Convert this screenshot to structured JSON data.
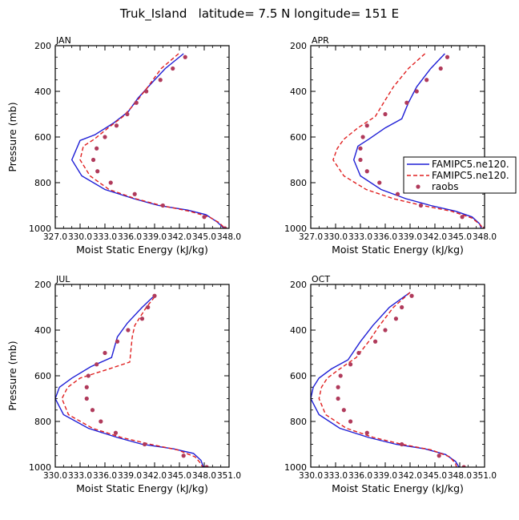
{
  "figure": {
    "title": "Truk_Island   latitude= 7.5 N longitude= 151 E"
  },
  "legend": {
    "entries": [
      {
        "name": "FAMIPC5.ne120.",
        "style": "solid",
        "color": "#1f1fd6"
      },
      {
        "name": "FAMIPC5.ne120.",
        "style": "dashed",
        "color": "#e02020"
      },
      {
        "name": "raobs",
        "style": "dots",
        "color": "#b03a5b"
      }
    ]
  },
  "chart_data": [
    {
      "type": "line",
      "panel": "JAN",
      "title": "JAN",
      "xlabel": "Moist Static Energy (kJ/kg)",
      "ylabel": "Pressure (mb)",
      "xlim": [
        327.0,
        348.0
      ],
      "ylim": [
        1000,
        200
      ],
      "xticks": [
        327.0,
        330.0,
        333.0,
        336.0,
        339.0,
        342.0,
        345.0,
        348.0
      ],
      "xticklabels": [
        "327.0",
        "330.0",
        "333.0",
        "336.0",
        "339.0",
        "342.0",
        "345.0",
        "348.0"
      ],
      "yticks": [
        200,
        400,
        600,
        800,
        1000
      ],
      "yticklabels": [
        "200",
        "400",
        "600",
        "800",
        "1000"
      ],
      "series": [
        {
          "name": "FAMIPC5.ne120.",
          "style": "solid",
          "color": "#1f1fd6",
          "points": [
            [
              342.5,
              235
            ],
            [
              340.3,
              300
            ],
            [
              338.5,
              370
            ],
            [
              337.0,
              430
            ],
            [
              335.8,
              490
            ],
            [
              334.0,
              540
            ],
            [
              331.8,
              590
            ],
            [
              330.0,
              615
            ],
            [
              329.0,
              700
            ],
            [
              330.2,
              770
            ],
            [
              333.0,
              830
            ],
            [
              336.5,
              870
            ],
            [
              339.5,
              900
            ],
            [
              343.0,
              920
            ],
            [
              345.2,
              940
            ],
            [
              346.5,
              970
            ],
            [
              347.4,
              1000
            ]
          ]
        },
        {
          "name": "FAMIPC5.ne120.",
          "style": "dashed",
          "color": "#e02020",
          "points": [
            [
              341.9,
              235
            ],
            [
              339.8,
              300
            ],
            [
              338.2,
              380
            ],
            [
              336.7,
              450
            ],
            [
              335.2,
              510
            ],
            [
              333.4,
              560
            ],
            [
              331.7,
              610
            ],
            [
              330.4,
              640
            ],
            [
              330.0,
              700
            ],
            [
              331.2,
              770
            ],
            [
              333.5,
              830
            ],
            [
              336.7,
              870
            ],
            [
              339.8,
              900
            ],
            [
              343.2,
              925
            ],
            [
              345.6,
              950
            ],
            [
              346.8,
              975
            ],
            [
              347.5,
              1000
            ]
          ]
        },
        {
          "name": "raobs",
          "style": "dots",
          "color": "#b03a5b",
          "points": [
            [
              342.7,
              250
            ],
            [
              341.2,
              300
            ],
            [
              339.7,
              350
            ],
            [
              338.0,
              400
            ],
            [
              336.8,
              450
            ],
            [
              335.7,
              500
            ],
            [
              334.4,
              550
            ],
            [
              333.0,
              600
            ],
            [
              332.0,
              650
            ],
            [
              331.6,
              700
            ],
            [
              332.1,
              750
            ],
            [
              333.7,
              800
            ],
            [
              336.6,
              850
            ],
            [
              340.0,
              900
            ],
            [
              345.0,
              950
            ],
            [
              347.5,
              1000
            ]
          ]
        }
      ]
    },
    {
      "type": "line",
      "panel": "APR",
      "title": "APR",
      "xlabel": "Moist Static Energy (kJ/kg)",
      "ylabel": "",
      "xlim": [
        327.0,
        348.0
      ],
      "ylim": [
        1000,
        200
      ],
      "xticks": [
        327.0,
        330.0,
        333.0,
        336.0,
        339.0,
        342.0,
        345.0,
        348.0
      ],
      "xticklabels": [
        "327.0",
        "330.0",
        "333.0",
        "336.0",
        "339.0",
        "342.0",
        "345.0",
        "348.0"
      ],
      "yticks": [
        200,
        400,
        600,
        800,
        1000
      ],
      "yticklabels": [
        "200",
        "400",
        "600",
        "800",
        "1000"
      ],
      "series": [
        {
          "name": "FAMIPC5.ne120.",
          "style": "solid",
          "color": "#1f1fd6",
          "points": [
            [
              343.2,
              235
            ],
            [
              341.5,
              300
            ],
            [
              339.8,
              380
            ],
            [
              338.8,
              450
            ],
            [
              338.0,
              520
            ],
            [
              336.0,
              560
            ],
            [
              334.0,
              610
            ],
            [
              332.7,
              640
            ],
            [
              332.2,
              700
            ],
            [
              333.0,
              770
            ],
            [
              335.5,
              830
            ],
            [
              338.5,
              870
            ],
            [
              341.5,
              900
            ],
            [
              344.5,
              925
            ],
            [
              346.5,
              950
            ],
            [
              347.4,
              980
            ],
            [
              347.6,
              1000
            ]
          ]
        },
        {
          "name": "FAMIPC5.ne120.",
          "style": "dashed",
          "color": "#e02020",
          "points": [
            [
              340.8,
              235
            ],
            [
              338.8,
              300
            ],
            [
              337.0,
              380
            ],
            [
              335.8,
              450
            ],
            [
              334.8,
              510
            ],
            [
              332.7,
              560
            ],
            [
              331.0,
              610
            ],
            [
              330.2,
              650
            ],
            [
              329.7,
              700
            ],
            [
              331.0,
              770
            ],
            [
              333.7,
              830
            ],
            [
              337.0,
              870
            ],
            [
              340.5,
              900
            ],
            [
              344.0,
              925
            ],
            [
              346.5,
              955
            ],
            [
              347.5,
              985
            ],
            [
              347.8,
              1000
            ]
          ]
        },
        {
          "name": "raobs",
          "style": "dots",
          "color": "#b03a5b",
          "points": [
            [
              343.5,
              250
            ],
            [
              342.7,
              300
            ],
            [
              341.0,
              350
            ],
            [
              339.8,
              400
            ],
            [
              338.6,
              450
            ],
            [
              336.0,
              500
            ],
            [
              333.8,
              550
            ],
            [
              333.3,
              600
            ],
            [
              333.0,
              650
            ],
            [
              333.0,
              700
            ],
            [
              333.8,
              750
            ],
            [
              335.3,
              800
            ],
            [
              337.5,
              850
            ],
            [
              340.3,
              900
            ],
            [
              345.3,
              950
            ],
            [
              348.0,
              1000
            ]
          ]
        }
      ]
    },
    {
      "type": "line",
      "panel": "JUL",
      "title": "JUL",
      "xlabel": "Moist Static Energy (kJ/kg)",
      "ylabel": "Pressure (mb)",
      "xlim": [
        330.0,
        351.0
      ],
      "ylim": [
        1000,
        200
      ],
      "xticks": [
        330.0,
        333.0,
        336.0,
        339.0,
        342.0,
        345.0,
        348.0,
        351.0
      ],
      "xticklabels": [
        "330.0",
        "333.0",
        "336.0",
        "339.0",
        "342.0",
        "345.0",
        "348.0",
        "351.0"
      ],
      "yticks": [
        200,
        400,
        600,
        800,
        1000
      ],
      "yticklabels": [
        "200",
        "400",
        "600",
        "800",
        "1000"
      ],
      "series": [
        {
          "name": "FAMIPC5.ne120.",
          "style": "solid",
          "color": "#1f1fd6",
          "points": [
            [
              341.8,
              255
            ],
            [
              340.5,
              300
            ],
            [
              338.7,
              370
            ],
            [
              337.5,
              430
            ],
            [
              336.8,
              520
            ],
            [
              334.3,
              560
            ],
            [
              332.0,
              610
            ],
            [
              330.5,
              650
            ],
            [
              330.0,
              700
            ],
            [
              331.0,
              770
            ],
            [
              334.0,
              830
            ],
            [
              337.5,
              870
            ],
            [
              340.5,
              900
            ],
            [
              344.3,
              920
            ],
            [
              346.7,
              940
            ],
            [
              347.6,
              970
            ],
            [
              347.9,
              1000
            ]
          ]
        },
        {
          "name": "FAMIPC5.ne120.",
          "style": "dashed",
          "color": "#e02020",
          "points": [
            [
              342.0,
              255
            ],
            [
              341.0,
              300
            ],
            [
              339.6,
              380
            ],
            [
              339.3,
              430
            ],
            [
              339.0,
              540
            ],
            [
              336.5,
              570
            ],
            [
              333.0,
              610
            ],
            [
              331.5,
              650
            ],
            [
              330.8,
              700
            ],
            [
              331.6,
              770
            ],
            [
              334.5,
              830
            ],
            [
              338.0,
              870
            ],
            [
              341.5,
              900
            ],
            [
              344.8,
              925
            ],
            [
              346.9,
              955
            ],
            [
              347.6,
              985
            ],
            [
              347.8,
              1000
            ]
          ]
        },
        {
          "name": "raobs",
          "style": "dots",
          "color": "#b03a5b",
          "points": [
            [
              342.0,
              250
            ],
            [
              341.2,
              300
            ],
            [
              340.5,
              350
            ],
            [
              338.8,
              400
            ],
            [
              337.5,
              450
            ],
            [
              336.0,
              500
            ],
            [
              335.0,
              550
            ],
            [
              334.0,
              600
            ],
            [
              333.8,
              650
            ],
            [
              333.8,
              700
            ],
            [
              334.5,
              750
            ],
            [
              335.5,
              800
            ],
            [
              337.3,
              850
            ],
            [
              340.8,
              900
            ],
            [
              345.5,
              950
            ],
            [
              348.3,
              1000
            ]
          ]
        }
      ]
    },
    {
      "type": "line",
      "panel": "OCT",
      "title": "OCT",
      "xlabel": "Moist Static Energy (kJ/kg)",
      "ylabel": "",
      "xlim": [
        330.0,
        351.0
      ],
      "ylim": [
        1000,
        200
      ],
      "xticks": [
        330.0,
        333.0,
        336.0,
        339.0,
        342.0,
        345.0,
        348.0,
        351.0
      ],
      "xticklabels": [
        "330.0",
        "333.0",
        "336.0",
        "339.0",
        "342.0",
        "345.0",
        "348.0",
        "351.0"
      ],
      "yticks": [
        200,
        400,
        600,
        800,
        1000
      ],
      "yticklabels": [
        "200",
        "400",
        "600",
        "800",
        "1000"
      ],
      "series": [
        {
          "name": "FAMIPC5.ne120.",
          "style": "solid",
          "color": "#1f1fd6",
          "points": [
            [
              342.0,
              235
            ],
            [
              339.5,
              300
            ],
            [
              337.5,
              380
            ],
            [
              336.0,
              450
            ],
            [
              334.5,
              530
            ],
            [
              332.5,
              570
            ],
            [
              331.0,
              610
            ],
            [
              330.3,
              650
            ],
            [
              330.0,
              700
            ],
            [
              331.0,
              770
            ],
            [
              333.5,
              830
            ],
            [
              337.0,
              870
            ],
            [
              340.3,
              900
            ],
            [
              343.8,
              920
            ],
            [
              346.3,
              945
            ],
            [
              347.5,
              975
            ],
            [
              347.9,
              1000
            ]
          ]
        },
        {
          "name": "FAMIPC5.ne120.",
          "style": "dashed",
          "color": "#e02020",
          "points": [
            [
              342.0,
              235
            ],
            [
              340.0,
              300
            ],
            [
              338.3,
              380
            ],
            [
              337.0,
              450
            ],
            [
              335.5,
              520
            ],
            [
              333.5,
              570
            ],
            [
              332.0,
              610
            ],
            [
              331.3,
              650
            ],
            [
              331.0,
              700
            ],
            [
              331.8,
              770
            ],
            [
              334.3,
              830
            ],
            [
              337.6,
              870
            ],
            [
              341.0,
              900
            ],
            [
              344.6,
              925
            ],
            [
              346.8,
              955
            ],
            [
              347.5,
              985
            ],
            [
              347.6,
              1000
            ]
          ]
        },
        {
          "name": "raobs",
          "style": "dots",
          "color": "#b03a5b",
          "points": [
            [
              342.2,
              250
            ],
            [
              341.0,
              300
            ],
            [
              340.3,
              350
            ],
            [
              339.0,
              400
            ],
            [
              337.8,
              450
            ],
            [
              335.8,
              500
            ],
            [
              334.8,
              550
            ],
            [
              333.6,
              600
            ],
            [
              333.3,
              650
            ],
            [
              333.3,
              700
            ],
            [
              334.0,
              750
            ],
            [
              334.8,
              800
            ],
            [
              336.8,
              850
            ],
            [
              341.0,
              900
            ],
            [
              345.5,
              950
            ],
            [
              348.5,
              1000
            ]
          ]
        }
      ]
    }
  ]
}
